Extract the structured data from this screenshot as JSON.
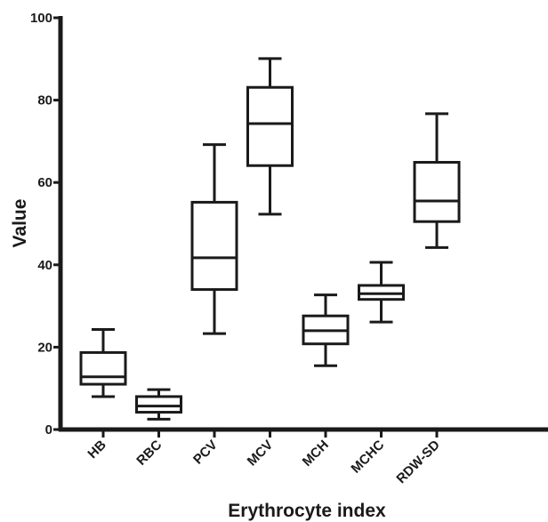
{
  "chart_data": {
    "type": "boxplot",
    "xlabel": "Erythrocyte index",
    "ylabel": "Value",
    "ylim": [
      0,
      100
    ],
    "yticks": [
      0,
      20,
      40,
      60,
      80,
      100
    ],
    "grid": false,
    "categories": [
      "HB",
      "RBC",
      "PCV",
      "MCV",
      "MCH",
      "MCHC",
      "RDW-SD"
    ],
    "boxes": [
      {
        "min": 8.0,
        "q1": 11.0,
        "median": 12.8,
        "q3": 18.7,
        "max": 24.3
      },
      {
        "min": 2.5,
        "q1": 4.2,
        "median": 5.7,
        "q3": 8.0,
        "max": 9.7
      },
      {
        "min": 23.3,
        "q1": 34.0,
        "median": 41.7,
        "q3": 55.2,
        "max": 69.2
      },
      {
        "min": 52.3,
        "q1": 64.1,
        "median": 74.3,
        "q3": 83.1,
        "max": 90.1
      },
      {
        "min": 15.5,
        "q1": 20.8,
        "median": 24.0,
        "q3": 27.6,
        "max": 32.7
      },
      {
        "min": 26.1,
        "q1": 31.6,
        "median": 33.0,
        "q3": 35.0,
        "max": 40.6
      },
      {
        "min": 44.2,
        "q1": 50.5,
        "median": 55.5,
        "q3": 64.9,
        "max": 76.7
      }
    ],
    "colors": {
      "stroke": "#1a1a1a",
      "background": "#ffffff"
    }
  }
}
